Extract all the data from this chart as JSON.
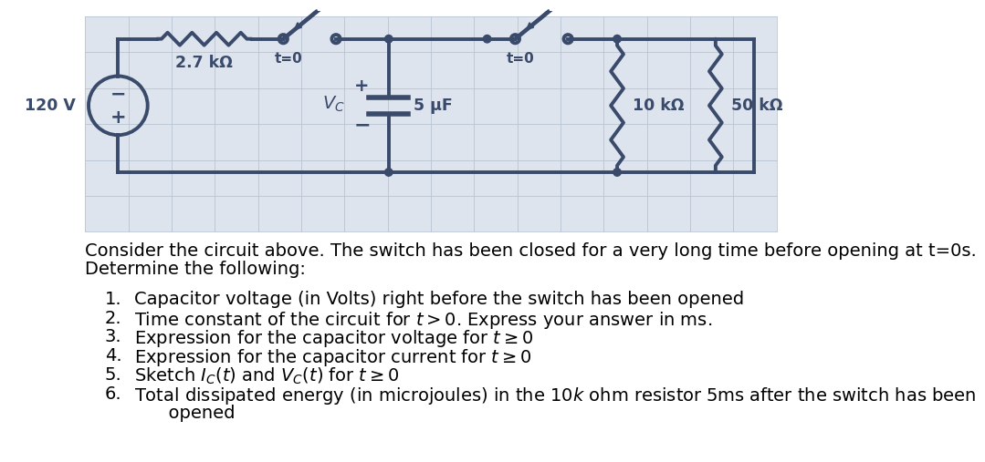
{
  "bg_color": "#ffffff",
  "grid_color": "#c8c8c8",
  "circuit_bg": "#dde4ed",
  "line_color": "#3a4a6b",
  "font_size_body": 14,
  "font_size_circuit": 12.5,
  "intro_line1": "Consider the circuit above. The switch has been closed for a very long time before opening at t=0s.",
  "intro_line2": "Determine the following:",
  "items": [
    "Capacitor voltage (in Volts) right before the switch has been opened",
    "Time constant of the circuit for $t > 0$. Express your answer in ms.",
    "Expression for the capacitor voltage for $t \\geq 0$",
    "Expression for the capacitor current for $t \\geq 0$",
    "Sketch $I_C(t)$ and $V_C(t)$ for $t \\geq 0$",
    "Total dissipated energy (in microjoules) in the $10k$ ohm resistor 5ms after the switch has been"
  ],
  "item6_line2": "      opened"
}
